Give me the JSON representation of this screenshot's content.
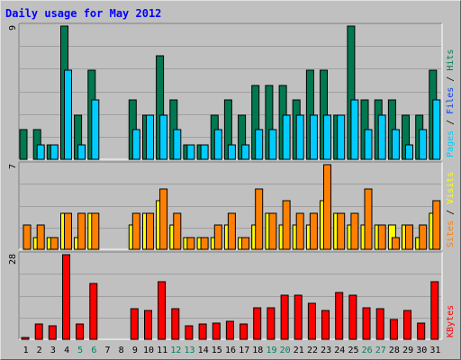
{
  "title": "Daily usage for May 2012",
  "colors": {
    "background": "#c0c0c0",
    "plot_background": "#c0c0c0",
    "grid": "#a0a0a0",
    "title": "#0000ff",
    "hits": "#007850",
    "files": "#00ccff",
    "pages": "#00ccff",
    "visits": "#ffff00",
    "sites": "#ff8000",
    "kbytes": "#ff0000",
    "weekend_day": "#00805c",
    "weekday": "#000000"
  },
  "chart_data": [
    {
      "type": "bar",
      "name": "hits-files-pages",
      "ymax_label": "9",
      "ylim": [
        0,
        9
      ],
      "right_label_parts": [
        {
          "text": "Pages",
          "color": "#00ccff"
        },
        {
          "text": " / ",
          "color": "#000000"
        },
        {
          "text": "Files",
          "color": "#0040ff"
        },
        {
          "text": " / ",
          "color": "#000000"
        },
        {
          "text": "Hits",
          "color": "#007850"
        }
      ],
      "categories": [
        "1",
        "2",
        "3",
        "4",
        "5",
        "6",
        "7",
        "8",
        "9",
        "10",
        "11",
        "12",
        "13",
        "14",
        "15",
        "16",
        "17",
        "18",
        "19",
        "20",
        "21",
        "22",
        "23",
        "24",
        "25",
        "26",
        "27",
        "28",
        "29",
        "30",
        "31"
      ],
      "series": [
        {
          "key": "hits",
          "values": [
            2,
            2,
            1,
            9,
            3,
            6,
            0,
            0,
            4,
            3,
            7,
            4,
            1,
            1,
            3,
            4,
            3,
            5,
            5,
            5,
            4,
            6,
            6,
            3,
            9,
            4,
            4,
            4,
            3,
            3,
            6
          ]
        },
        {
          "key": "files",
          "values": [
            0,
            1,
            1,
            6,
            1,
            4,
            0,
            0,
            2,
            3,
            3,
            2,
            1,
            1,
            2,
            1,
            1,
            2,
            2,
            3,
            3,
            3,
            3,
            3,
            4,
            2,
            3,
            2,
            1,
            2,
            4
          ]
        }
      ]
    },
    {
      "type": "bar",
      "name": "visits-sites",
      "ymax_label": "7",
      "ylim": [
        0,
        7
      ],
      "right_label_parts": [
        {
          "text": "Sites",
          "color": "#ff8000"
        },
        {
          "text": " / ",
          "color": "#000000"
        },
        {
          "text": "Visits",
          "color": "#ffff00"
        }
      ],
      "categories": [
        "1",
        "2",
        "3",
        "4",
        "5",
        "6",
        "7",
        "8",
        "9",
        "10",
        "11",
        "12",
        "13",
        "14",
        "15",
        "16",
        "17",
        "18",
        "19",
        "20",
        "21",
        "22",
        "23",
        "24",
        "25",
        "26",
        "27",
        "28",
        "29",
        "30",
        "31"
      ],
      "series": [
        {
          "key": "visits",
          "values": [
            0,
            1,
            1,
            3,
            1,
            3,
            0,
            0,
            2,
            3,
            4,
            2,
            1,
            1,
            1,
            2,
            1,
            2,
            3,
            2,
            2,
            2,
            4,
            3,
            2,
            2,
            2,
            2,
            2,
            1,
            3
          ]
        },
        {
          "key": "sites",
          "values": [
            2,
            2,
            1,
            3,
            3,
            3,
            0,
            0,
            3,
            3,
            5,
            3,
            1,
            1,
            2,
            3,
            1,
            5,
            3,
            4,
            3,
            3,
            7,
            3,
            3,
            5,
            2,
            1,
            2,
            2,
            4
          ]
        }
      ]
    },
    {
      "type": "bar",
      "name": "kbytes",
      "ymax_label": "28",
      "ylim": [
        0,
        28
      ],
      "right_label_parts": [
        {
          "text": "KBytes",
          "color": "#ff0000"
        }
      ],
      "categories": [
        "1",
        "2",
        "3",
        "4",
        "5",
        "6",
        "7",
        "8",
        "9",
        "10",
        "11",
        "12",
        "13",
        "14",
        "15",
        "16",
        "17",
        "18",
        "19",
        "20",
        "21",
        "22",
        "23",
        "24",
        "25",
        "26",
        "27",
        "28",
        "29",
        "30",
        "31"
      ],
      "series": [
        {
          "key": "kbytes",
          "values": [
            0.5,
            5,
            4.5,
            28,
            5,
            18.5,
            0,
            0,
            10,
            9.5,
            19,
            10,
            4.5,
            5,
            5.5,
            6,
            5,
            10.5,
            10.5,
            14.5,
            14.5,
            12,
            9.5,
            15.5,
            14.5,
            10.5,
            10,
            6.5,
            9.5,
            5.5,
            19
          ]
        }
      ]
    }
  ],
  "x_labels": [
    "1",
    "2",
    "3",
    "4",
    "5",
    "6",
    "7",
    "8",
    "9",
    "10",
    "11",
    "12",
    "13",
    "14",
    "15",
    "16",
    "17",
    "18",
    "19",
    "20",
    "21",
    "22",
    "23",
    "24",
    "25",
    "26",
    "27",
    "28",
    "29",
    "30",
    "31"
  ],
  "weekend_days": [
    5,
    6,
    12,
    13,
    19,
    20,
    26,
    27
  ]
}
